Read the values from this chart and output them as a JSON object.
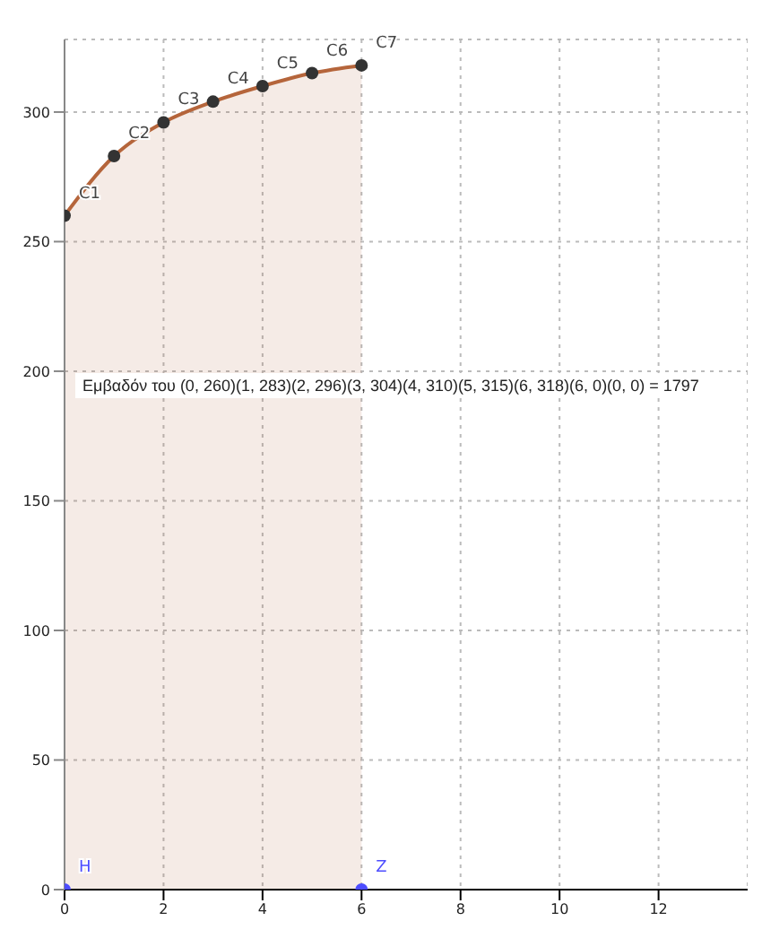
{
  "chart_data": {
    "type": "area",
    "xlim": [
      0,
      13.8
    ],
    "ylim": [
      0,
      328
    ],
    "xticks": [
      0,
      2,
      4,
      6,
      8,
      10,
      12
    ],
    "yticks": [
      0,
      50,
      100,
      150,
      200,
      250,
      300
    ],
    "grid": true,
    "legend": false,
    "series": [
      {
        "x": [
          0,
          1,
          2,
          3,
          4,
          5,
          6
        ],
        "values": [
          260,
          283,
          296,
          304,
          310,
          315,
          318
        ],
        "color": "#b5653b"
      },
      {
        "type": "scatter",
        "x": [
          0,
          1,
          2,
          3,
          4,
          5,
          6
        ],
        "values": [
          260,
          283,
          296,
          304,
          310,
          315,
          318
        ],
        "color": "#333333",
        "marker": "circle"
      },
      {
        "type": "scatter",
        "x": [
          0,
          6
        ],
        "values": [
          0,
          0
        ],
        "color": "#4d4dff",
        "marker": "circle"
      }
    ],
    "annotations": [
      {
        "text": "C1",
        "x": 0,
        "y": 260
      },
      {
        "text": "C2",
        "x": 1,
        "y": 283
      },
      {
        "text": "C3",
        "x": 2,
        "y": 296
      },
      {
        "text": "C4",
        "x": 3,
        "y": 304
      },
      {
        "text": "C5",
        "x": 4,
        "y": 310
      },
      {
        "text": "C6",
        "x": 5,
        "y": 315
      },
      {
        "text": "C7",
        "x": 6,
        "y": 318
      },
      {
        "text": "H",
        "x": 0,
        "y": 0
      },
      {
        "text": "Z",
        "x": 6,
        "y": 0
      },
      "Εμβαδόν του  (0, 260)(1, 283)(2, 296)(3, 304)(4, 310)(5, 315)(6, 318)(6, 0)(0, 0) = 1797"
    ]
  }
}
